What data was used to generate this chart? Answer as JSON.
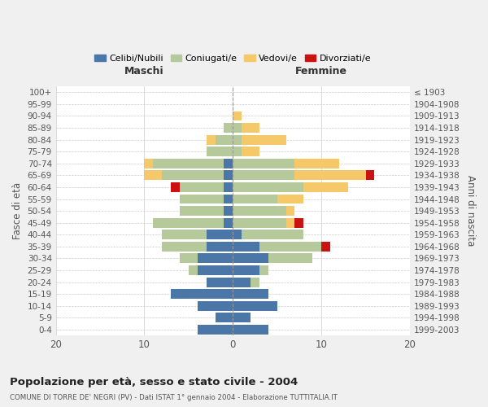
{
  "age_groups": [
    "0-4",
    "5-9",
    "10-14",
    "15-19",
    "20-24",
    "25-29",
    "30-34",
    "35-39",
    "40-44",
    "45-49",
    "50-54",
    "55-59",
    "60-64",
    "65-69",
    "70-74",
    "75-79",
    "80-84",
    "85-89",
    "90-94",
    "95-99",
    "100+"
  ],
  "birth_years": [
    "1999-2003",
    "1994-1998",
    "1989-1993",
    "1984-1988",
    "1979-1983",
    "1974-1978",
    "1969-1973",
    "1964-1968",
    "1959-1963",
    "1954-1958",
    "1949-1953",
    "1944-1948",
    "1939-1943",
    "1934-1938",
    "1929-1933",
    "1924-1928",
    "1919-1923",
    "1914-1918",
    "1909-1913",
    "1904-1908",
    "≤ 1903"
  ],
  "colors": {
    "celibi": "#4a76a8",
    "coniugati": "#b5c99a",
    "vedovi": "#f5c96a",
    "divorziati": "#cc1111"
  },
  "legend_labels": [
    "Celibi/Nubili",
    "Coniugati/e",
    "Vedovi/e",
    "Divorziati/e"
  ],
  "title": "Popolazione per età, sesso e stato civile - 2004",
  "subtitle": "COMUNE DI TORRE DE' NEGRI (PV) - Dati ISTAT 1° gennaio 2004 - Elaborazione TUTTITALIA.IT",
  "ylabel_left": "Fasce di età",
  "ylabel_right": "Anni di nascita",
  "xlabel_left": "Maschi",
  "xlabel_right": "Femmine",
  "xlim": 20,
  "maschi": {
    "celibi": [
      4,
      2,
      4,
      7,
      3,
      4,
      4,
      3,
      3,
      1,
      1,
      1,
      1,
      1,
      1,
      0,
      0,
      0,
      0,
      0,
      0
    ],
    "coniugati": [
      0,
      0,
      0,
      0,
      0,
      1,
      2,
      5,
      5,
      8,
      5,
      5,
      5,
      7,
      8,
      3,
      2,
      1,
      0,
      0,
      0
    ],
    "vedovi": [
      0,
      0,
      0,
      0,
      0,
      0,
      0,
      0,
      0,
      0,
      0,
      0,
      0,
      2,
      1,
      0,
      1,
      0,
      0,
      0,
      0
    ],
    "divorziati": [
      0,
      0,
      0,
      0,
      0,
      0,
      0,
      0,
      0,
      0,
      0,
      0,
      1,
      0,
      0,
      0,
      0,
      0,
      0,
      0,
      0
    ]
  },
  "femmine": {
    "nubili": [
      4,
      2,
      5,
      4,
      2,
      3,
      4,
      3,
      1,
      0,
      0,
      0,
      0,
      0,
      0,
      0,
      0,
      0,
      0,
      0,
      0
    ],
    "coniugate": [
      0,
      0,
      0,
      0,
      1,
      1,
      5,
      7,
      7,
      6,
      6,
      5,
      8,
      7,
      7,
      1,
      1,
      1,
      0,
      0,
      0
    ],
    "vedove": [
      0,
      0,
      0,
      0,
      0,
      0,
      0,
      0,
      0,
      1,
      1,
      3,
      5,
      8,
      5,
      2,
      5,
      2,
      1,
      0,
      0
    ],
    "divorziate": [
      0,
      0,
      0,
      0,
      0,
      0,
      0,
      1,
      0,
      1,
      0,
      0,
      0,
      1,
      0,
      0,
      0,
      0,
      0,
      0,
      0
    ]
  },
  "background_color": "#f0f0f0",
  "plot_bg": "#ffffff",
  "grid_color": "#cccccc"
}
